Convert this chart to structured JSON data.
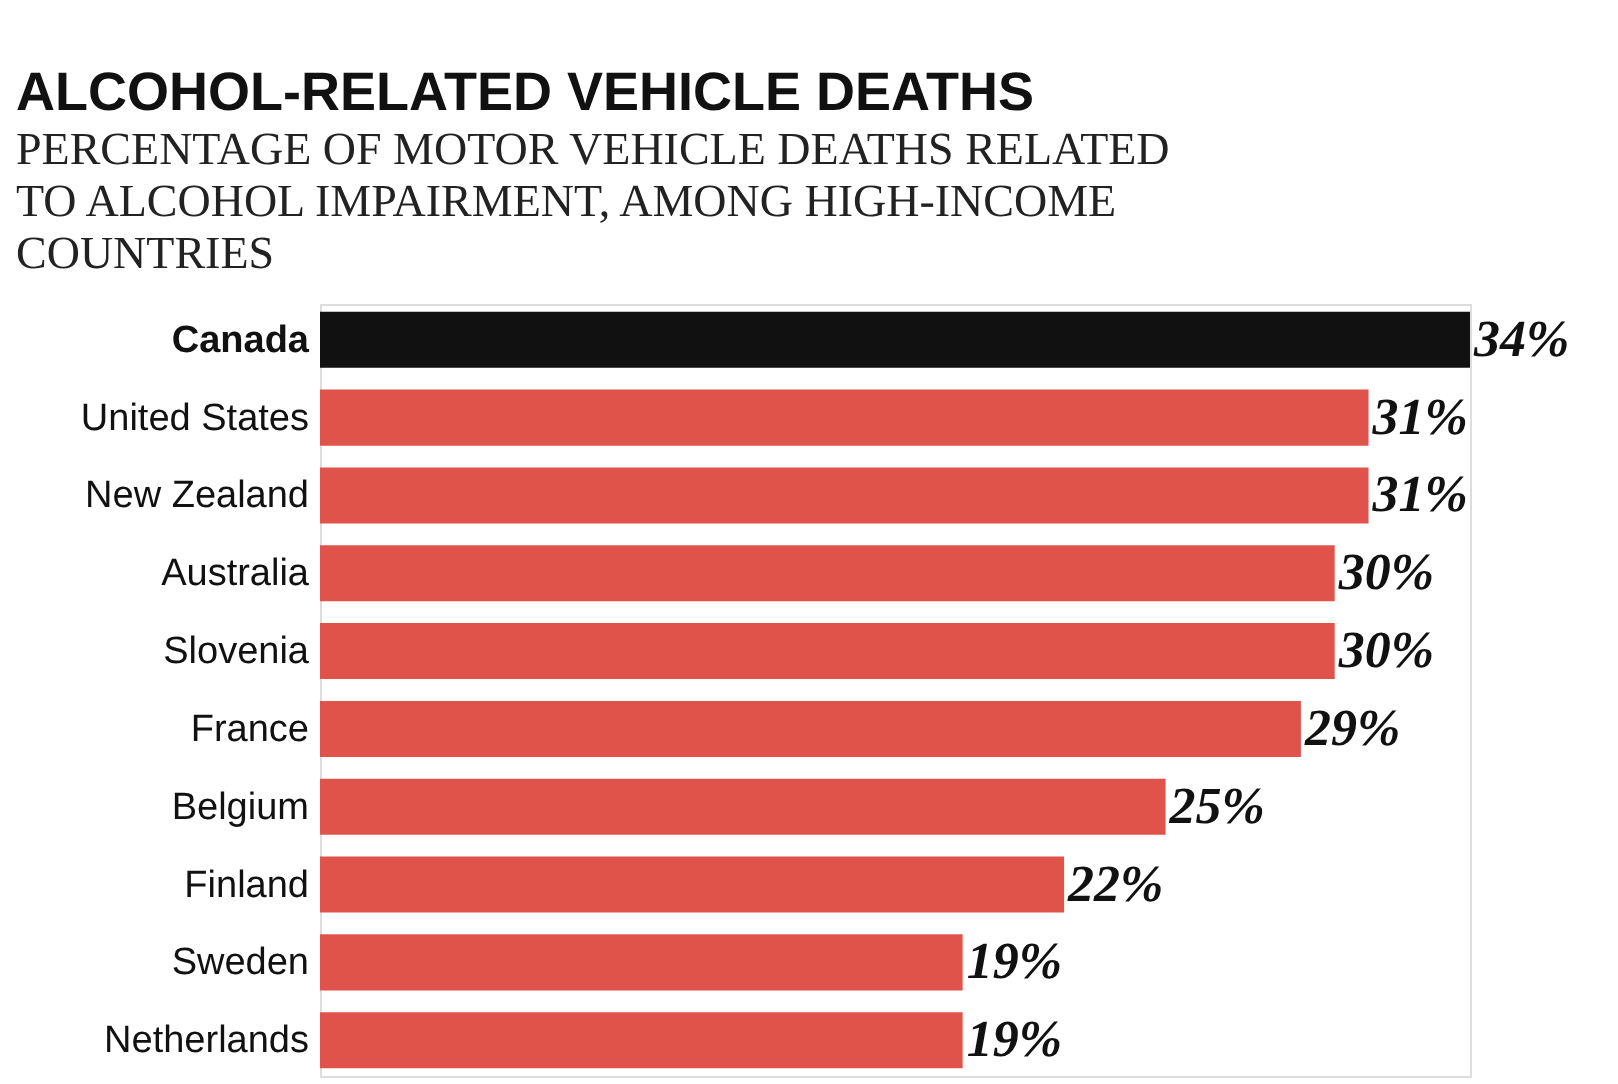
{
  "chart_data": {
    "type": "bar",
    "orientation": "horizontal",
    "title": "ALCOHOL-RELATED VEHICLE DEATHS",
    "subtitle": "PERCENTAGE OF MOTOR VEHICLE DEATHS RELATED TO ALCOHOL IMPAIRMENT, AMONG HIGH-INCOME COUNTRIES",
    "categories": [
      "Canada",
      "United States",
      "New Zealand",
      "Australia",
      "Slovenia",
      "France",
      "Belgium",
      "Finland",
      "Sweden",
      "Netherlands"
    ],
    "values": [
      34,
      31,
      31,
      30,
      30,
      29,
      25,
      22,
      19,
      19
    ],
    "colors": [
      "#111111",
      "#e0534a",
      "#e0534a",
      "#e0534a",
      "#e0534a",
      "#e0534a",
      "#e0534a",
      "#e0534a",
      "#e0534a",
      "#e0534a"
    ],
    "value_labels": [
      "34%",
      "31%",
      "31%",
      "30%",
      "30%",
      "29%",
      "25%",
      "22%",
      "19%",
      "19%"
    ],
    "grid": false
  }
}
